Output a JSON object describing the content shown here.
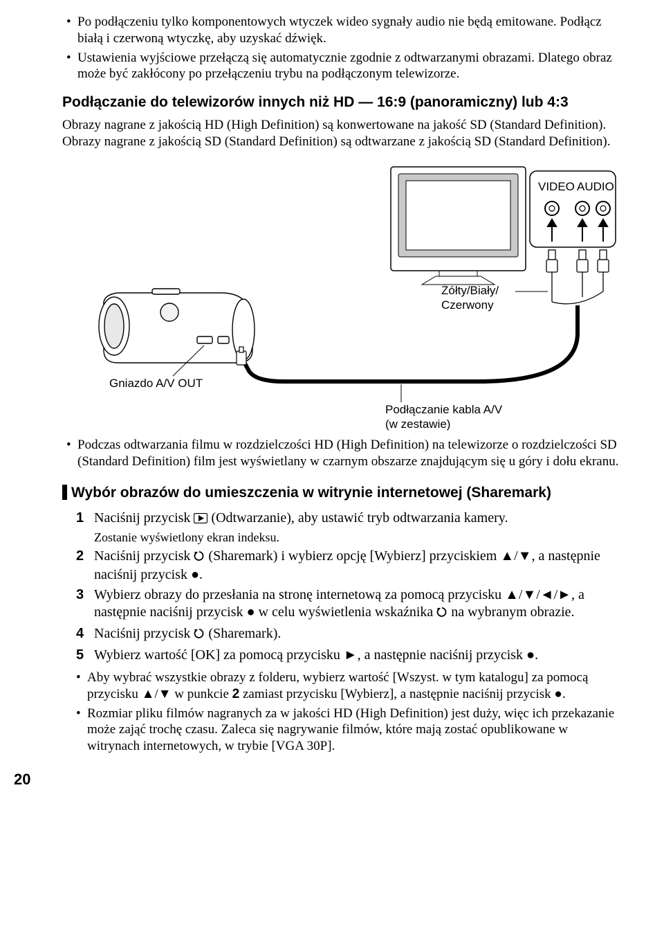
{
  "colors": {
    "text": "#000000",
    "bg": "#ffffff"
  },
  "top_bullets": [
    "Po podłączeniu tylko komponentowych wtyczek wideo sygnały audio nie będą emitowane. Podłącz białą i czerwoną wtyczkę, aby uzyskać dźwięk.",
    "Ustawienia wyjściowe przełączą się automatycznie zgodnie z odtwarzanymi obrazami. Dlatego obraz może być zakłócony po przełączeniu trybu na podłączonym telewizorze."
  ],
  "heading1": "Podłączanie do telewizorów innych niż HD — 16:9 (panoramiczny) lub 4:3",
  "para1": "Obrazy nagrane z jakością HD (High Definition) są konwertowane na jakość SD (Standard Definition). Obrazy nagrane z jakością SD (Standard Definition) są odtwarzane z jakością SD (Standard Definition).",
  "diagram": {
    "video_label": "VIDEO",
    "audio_label": "AUDIO",
    "cable_colors": "Żółty/Biały/\nCzerwony",
    "jack_label": "Gniazdo A/V OUT",
    "cable_label": "Podłączanie kabla A/V\n(w zestawie)"
  },
  "mid_bullet": "Podczas odtwarzania filmu w rozdzielczości HD (High Definition) na telewizorze o rozdzielczości SD (Standard Definition) film jest wyświetlany w czarnym obszarze znajdującym się u góry i dołu ekranu.",
  "heading2": "Wybór obrazów do umieszczenia w witrynie internetowej (Sharemark)",
  "steps": {
    "s1_a": "Naciśnij przycisk ",
    "s1_b": " (Odtwarzanie), aby ustawić tryb odtwarzania kamery.",
    "s1_note": "Zostanie wyświetlony ekran indeksu.",
    "s2_a": "Naciśnij przycisk ",
    "s2_b": " (Sharemark) i wybierz opcję [Wybierz] przyciskiem ▲/▼, a następnie naciśnij przycisk ●.",
    "s3_a": "Wybierz obrazy do przesłania na stronę internetową za pomocą przycisku ▲/▼/◄/►, a następnie naciśnij przycisk ● w celu wyświetlenia wskaźnika ",
    "s3_b": " na wybranym obrazie.",
    "s4_a": "Naciśnij przycisk ",
    "s4_b": " (Sharemark).",
    "s5": "Wybierz wartość [OK] za pomocą przycisku ►, a następnie naciśnij przycisk ●."
  },
  "lower_bullets": [
    "Aby wybrać wszystkie obrazy z folderu, wybierz wartość [Wszyst. w tym katalogu] za pomocą przycisku ▲/▼ w punkcie 2 zamiast przycisku [Wybierz], a następnie naciśnij przycisk ●.",
    "Rozmiar pliku filmów nagranych za w jakości HD (High Definition) jest duży, więc ich przekazanie może zająć trochę czasu. Zaleca się nagrywanie filmów, które mają zostać opublikowane w witrynach internetowych, w trybie [VGA 30P]."
  ],
  "page_number": "20",
  "step2_bold": "2"
}
